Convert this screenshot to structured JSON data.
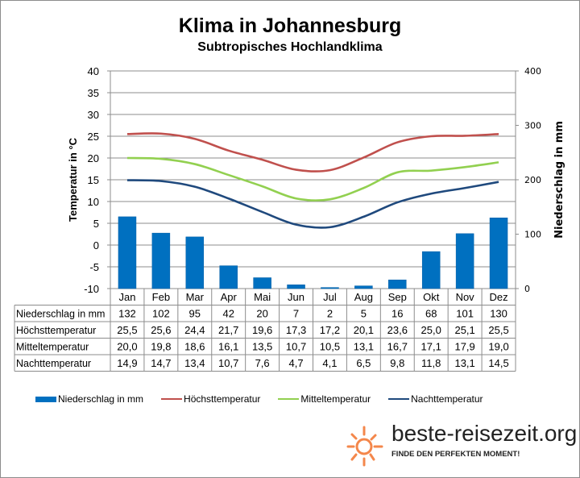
{
  "title": "Klima in Johannesburg",
  "subtitle": "Subtropisches Hochlandklima",
  "chart_data": {
    "type": "bar+line",
    "title": "Klima in Johannesburg",
    "subtitle": "Subtropisches Hochlandklima",
    "categories": [
      "Jan",
      "Feb",
      "Mar",
      "Apr",
      "Mai",
      "Jun",
      "Jul",
      "Aug",
      "Sep",
      "Okt",
      "Nov",
      "Dez"
    ],
    "ylabel_left": "Temperatur in °C",
    "ylabel_right": "Niederschlag in mm",
    "ylim_left": [
      -10,
      40
    ],
    "yticks_left": [
      40,
      35,
      30,
      25,
      20,
      15,
      10,
      5,
      0,
      -5,
      -10
    ],
    "ylim_right": [
      0,
      400
    ],
    "yticks_right": [
      400,
      300,
      200,
      100,
      0
    ],
    "grid": true,
    "legend_position": "bottom",
    "series": [
      {
        "name": "Niederschlag in mm",
        "type": "bar",
        "axis": "right",
        "color": "#0070c0",
        "values": [
          132,
          102,
          95,
          42,
          20,
          7,
          2,
          5,
          16,
          68,
          101,
          130
        ],
        "labels": [
          "132",
          "102",
          "95",
          "42",
          "20",
          "7",
          "2",
          "5",
          "16",
          "68",
          "101",
          "130"
        ]
      },
      {
        "name": "Höchsttemperatur",
        "type": "line",
        "axis": "left",
        "color": "#c0504d",
        "values": [
          25.5,
          25.6,
          24.4,
          21.7,
          19.6,
          17.3,
          17.2,
          20.1,
          23.6,
          25.0,
          25.1,
          25.5
        ],
        "labels": [
          "25,5",
          "25,6",
          "24,4",
          "21,7",
          "19,6",
          "17,3",
          "17,2",
          "20,1",
          "23,6",
          "25,0",
          "25,1",
          "25,5"
        ]
      },
      {
        "name": "Mitteltemperatur",
        "type": "line",
        "axis": "left",
        "color": "#92d050",
        "values": [
          20.0,
          19.8,
          18.6,
          16.1,
          13.5,
          10.7,
          10.5,
          13.1,
          16.7,
          17.1,
          17.9,
          19.0
        ],
        "labels": [
          "20,0",
          "19,8",
          "18,6",
          "16,1",
          "13,5",
          "10,7",
          "10,5",
          "13,1",
          "16,7",
          "17,1",
          "17,9",
          "19,0"
        ]
      },
      {
        "name": "Nachttemperatur",
        "type": "line",
        "axis": "left",
        "color": "#1f497d",
        "values": [
          14.9,
          14.7,
          13.4,
          10.7,
          7.6,
          4.7,
          4.1,
          6.5,
          9.8,
          11.8,
          13.1,
          14.5
        ],
        "labels": [
          "14,9",
          "14,7",
          "13,4",
          "10,7",
          "7,6",
          "4,7",
          "4,1",
          "6,5",
          "9,8",
          "11,8",
          "13,1",
          "14,5"
        ]
      }
    ]
  },
  "logo": {
    "text": "beste-reisezeit.org",
    "tagline": "FINDE DEN PERFEKTEN MOMENT!",
    "icon": "sun-icon",
    "color": "#f4874b"
  }
}
